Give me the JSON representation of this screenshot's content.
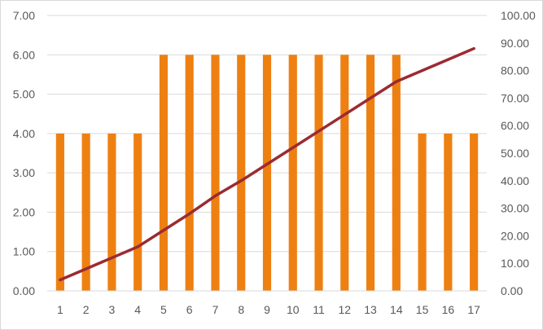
{
  "chart_data": {
    "type": "bar",
    "combo": true,
    "categories": [
      "1",
      "2",
      "3",
      "4",
      "5",
      "6",
      "7",
      "8",
      "9",
      "10",
      "11",
      "12",
      "13",
      "14",
      "15",
      "16",
      "17"
    ],
    "series": [
      {
        "type": "bar",
        "axis": "left",
        "color": "#EE8012",
        "values": [
          4,
          4,
          4,
          4,
          6,
          6,
          6,
          6,
          6,
          6,
          6,
          6,
          6,
          6,
          4,
          4,
          4
        ]
      },
      {
        "type": "line",
        "axis": "right",
        "color": "#9B2B32",
        "values": [
          4,
          8,
          12,
          16,
          22,
          28,
          34.5,
          40,
          46,
          52,
          58,
          64,
          70,
          76,
          80,
          84,
          88
        ]
      }
    ],
    "y_left": {
      "ylim": [
        0,
        7
      ],
      "ticks": [
        "0.00",
        "1.00",
        "2.00",
        "3.00",
        "4.00",
        "5.00",
        "6.00",
        "7.00"
      ]
    },
    "y_right": {
      "ylim": [
        0,
        100
      ],
      "ticks": [
        "0.00",
        "10.00",
        "20.00",
        "30.00",
        "40.00",
        "50.00",
        "60.00",
        "70.00",
        "80.00",
        "90.00",
        "100.00"
      ]
    },
    "grid": true,
    "legend": "none",
    "gridline_color": "#d9d9d9"
  }
}
